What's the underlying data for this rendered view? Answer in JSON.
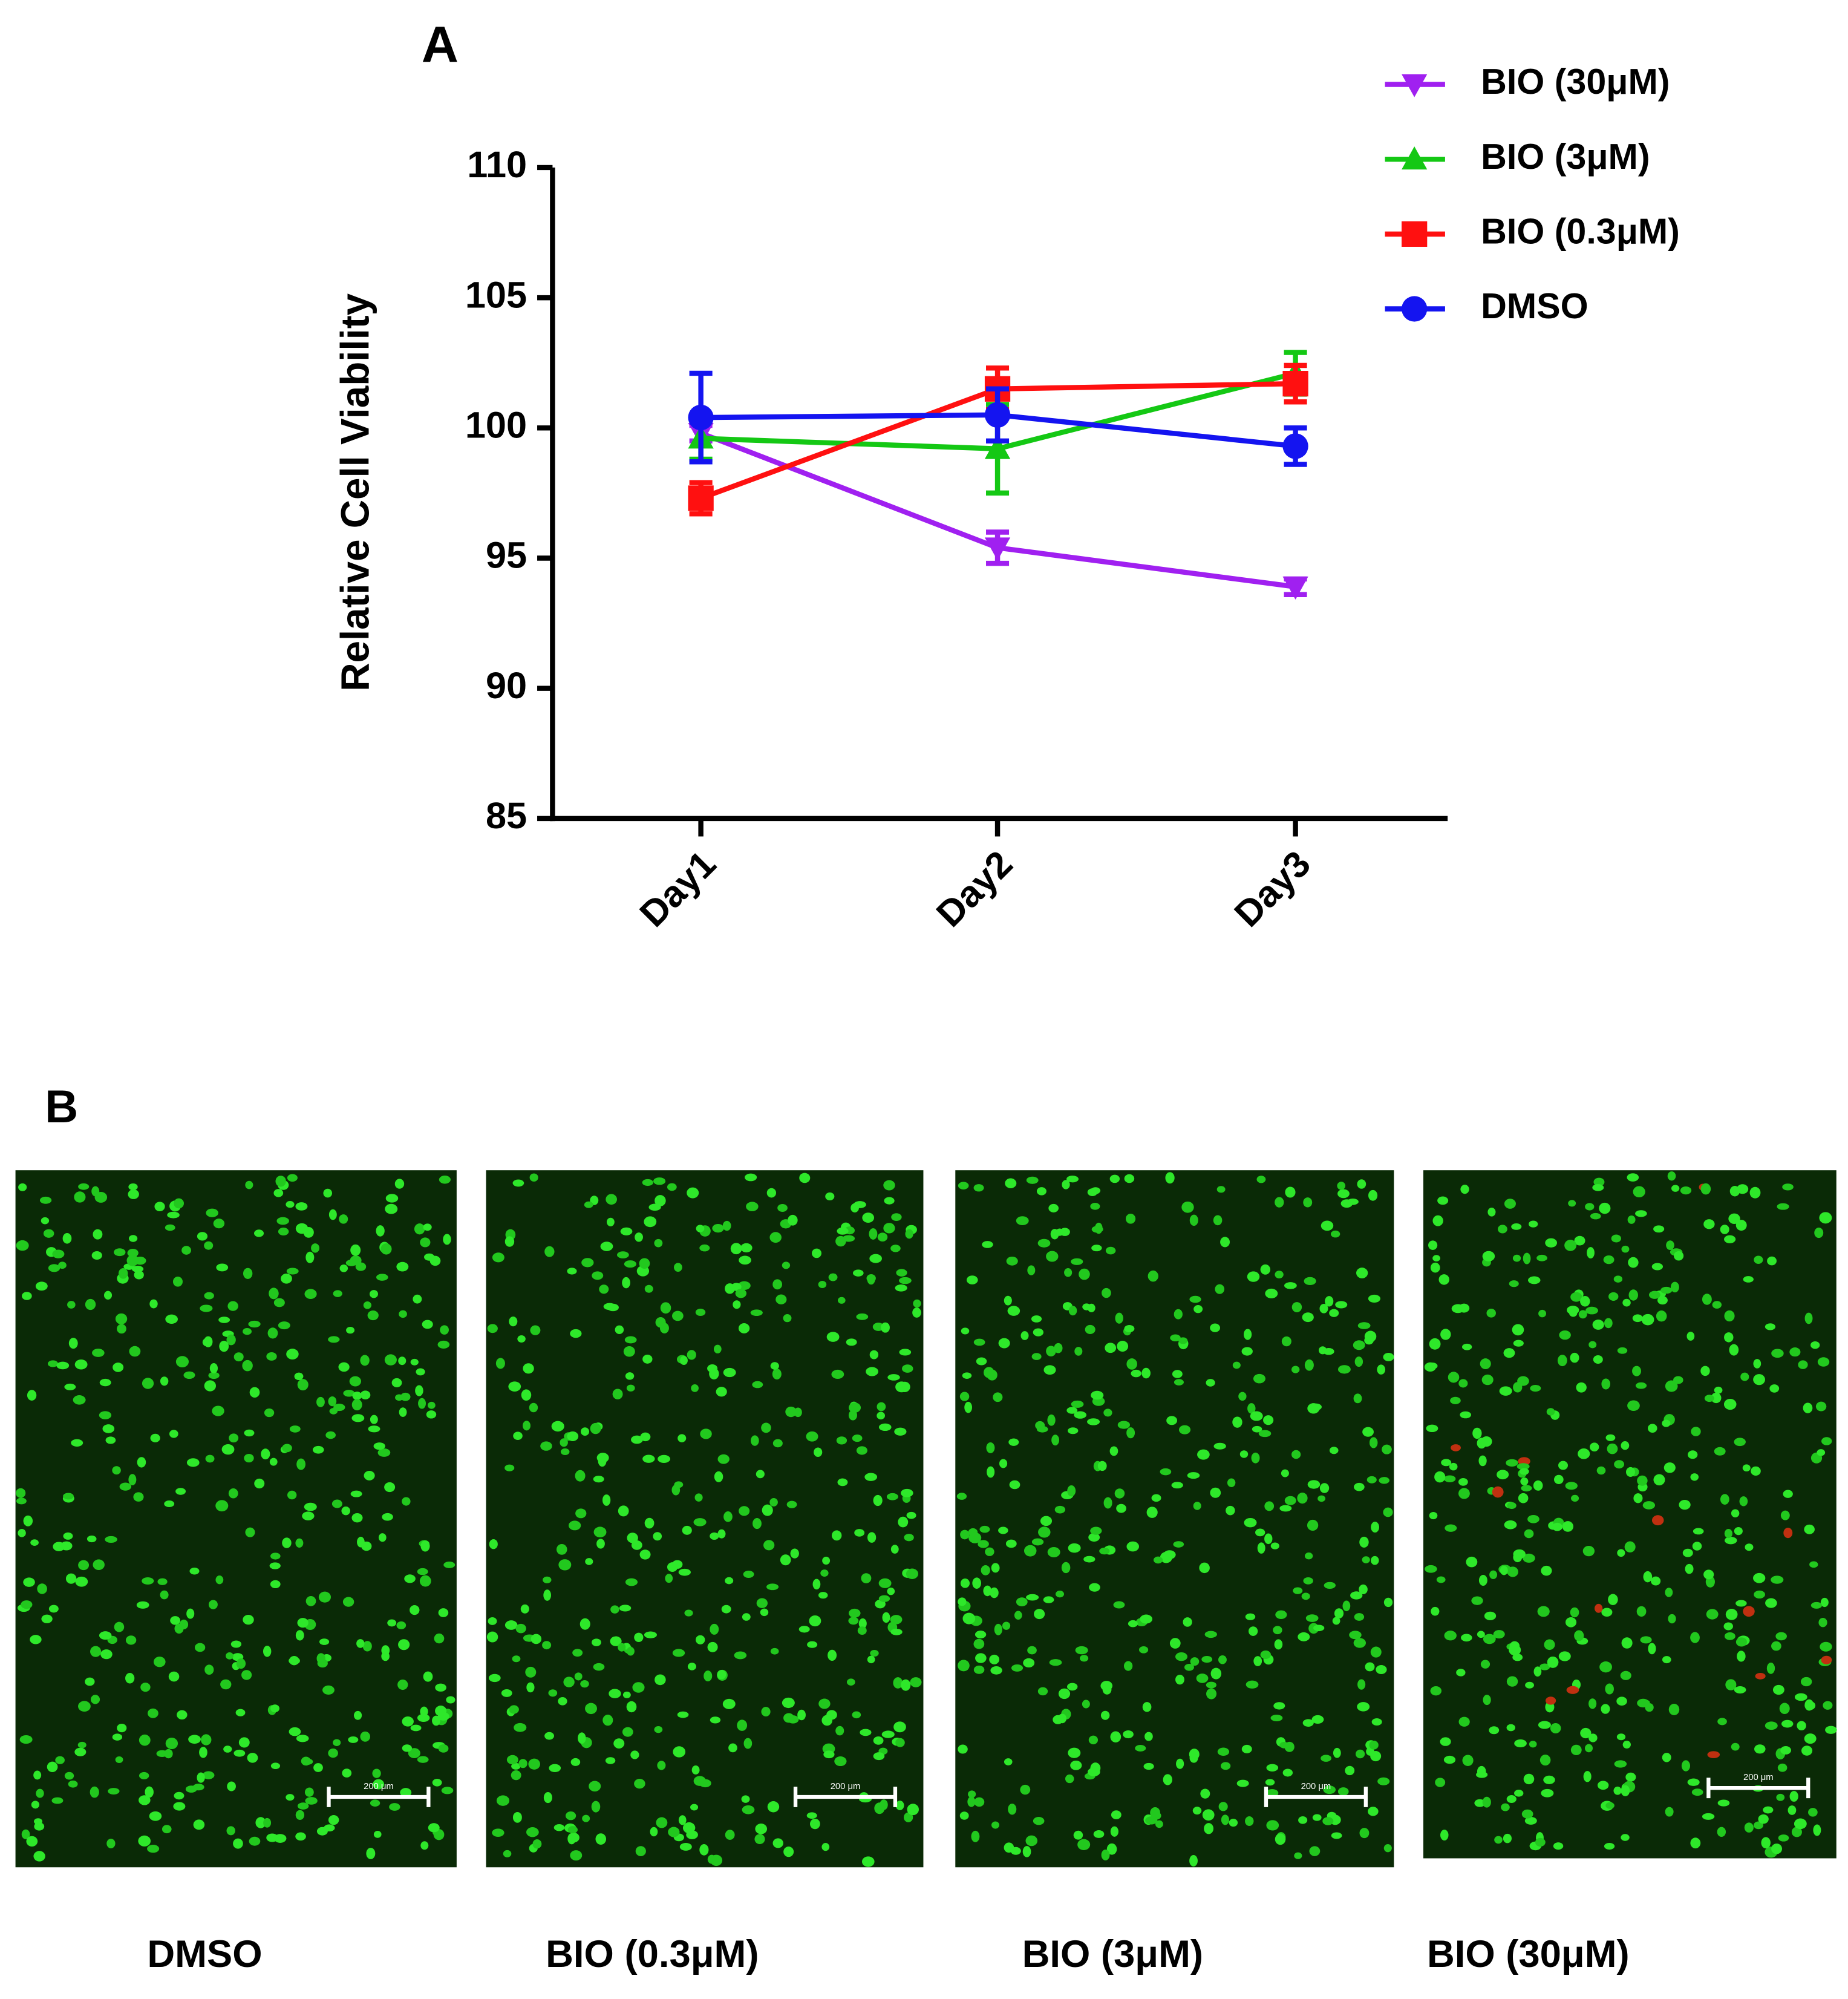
{
  "panel_a": {
    "label": "A"
  },
  "chart_data": {
    "type": "line",
    "y_label": "Relative Cell Viability",
    "categories": [
      "Day1",
      "Day2",
      "Day3"
    ],
    "ylim": [
      85,
      110
    ],
    "yticks": [
      85,
      90,
      95,
      100,
      105,
      110
    ],
    "legend": "top-right",
    "series": [
      {
        "name": "BIO (30μM)",
        "color": "#a020f0",
        "marker": "triangle-down",
        "values": [
          99.8,
          95.4,
          93.9
        ],
        "errors": [
          0.3,
          0.6,
          0.3
        ]
      },
      {
        "name": "BIO (3μM)",
        "color": "#14c814",
        "marker": "triangle-up",
        "values": [
          99.6,
          99.2,
          102.1
        ],
        "errors": [
          0.8,
          1.7,
          0.8
        ]
      },
      {
        "name": "BIO (0.3μM)",
        "color": "#ff1010",
        "marker": "square",
        "values": [
          97.3,
          101.5,
          101.7
        ],
        "errors": [
          0.6,
          0.8,
          0.7
        ]
      },
      {
        "name": "DMSO",
        "color": "#1414f0",
        "marker": "circle",
        "values": [
          100.4,
          100.5,
          99.3
        ],
        "errors": [
          1.7,
          1.0,
          0.7
        ]
      }
    ]
  },
  "panel_b": {
    "label": "B",
    "images": [
      {
        "caption": "DMSO",
        "scale_bar": "200 μm"
      },
      {
        "caption": "BIO (0.3μM)",
        "scale_bar": "200 μm"
      },
      {
        "caption": "BIO (3μM)",
        "scale_bar": "200 μm"
      },
      {
        "caption": "BIO (30μM)",
        "scale_bar": "200 μm"
      }
    ]
  }
}
